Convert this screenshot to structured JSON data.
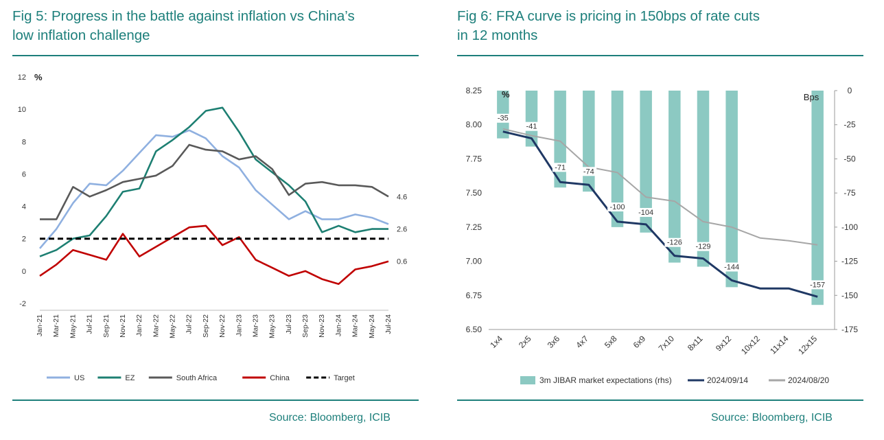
{
  "left": {
    "title_line1": "Fig 5: Progress in the battle against inflation vs China’s",
    "title_line2": "low inflation challenge",
    "source": "Source: Bloomberg, ICIB"
  },
  "right": {
    "title_line1": "Fig 6: FRA curve is pricing in 150bps of rate cuts",
    "title_line2": "in 12 months",
    "source": "Source: Bloomberg, ICIB"
  },
  "chart_data": [
    {
      "type": "line",
      "ylabel_unit": "%",
      "ylim": [
        -2,
        12
      ],
      "yticks": [
        "12",
        "10",
        "8",
        "6",
        "4",
        "2",
        "0",
        "-2"
      ],
      "x": [
        "Jan-21",
        "Mar-21",
        "May-21",
        "Jul-21",
        "Sep-21",
        "Nov-21",
        "Jan-22",
        "Mar-22",
        "May-22",
        "Jul-22",
        "Sep-22",
        "Nov-22",
        "Jan-23",
        "Mar-23",
        "May-23",
        "Jul-23",
        "Sep-23",
        "Nov-23",
        "Jan-24",
        "Mar-24",
        "May-24",
        "Jul-24"
      ],
      "series": [
        {
          "name": "US",
          "color": "#8fb0e0",
          "values": [
            1.4,
            2.6,
            4.2,
            5.4,
            5.3,
            6.2,
            7.3,
            8.4,
            8.3,
            8.7,
            8.2,
            7.1,
            6.4,
            5.0,
            4.1,
            3.2,
            3.7,
            3.2,
            3.2,
            3.5,
            3.3,
            2.9
          ]
        },
        {
          "name": "EZ",
          "color": "#1d7f72",
          "values": [
            0.9,
            1.3,
            2.0,
            2.2,
            3.4,
            4.9,
            5.1,
            7.4,
            8.1,
            8.9,
            9.9,
            10.1,
            8.6,
            6.9,
            6.1,
            5.3,
            4.3,
            2.4,
            2.8,
            2.4,
            2.6,
            2.6
          ]
        },
        {
          "name": "South Africa",
          "color": "#595959",
          "values": [
            3.2,
            3.2,
            5.2,
            4.6,
            5.0,
            5.5,
            5.7,
            5.9,
            6.5,
            7.8,
            7.5,
            7.4,
            6.9,
            7.1,
            6.3,
            4.7,
            5.4,
            5.5,
            5.3,
            5.3,
            5.2,
            4.6
          ]
        },
        {
          "name": "China",
          "color": "#c00000",
          "values": [
            -0.3,
            0.4,
            1.3,
            1.0,
            0.7,
            2.3,
            0.9,
            1.5,
            2.1,
            2.7,
            2.8,
            1.6,
            2.1,
            0.7,
            0.2,
            -0.3,
            0.0,
            -0.5,
            -0.8,
            0.1,
            0.3,
            0.6
          ]
        },
        {
          "name": "Target",
          "color": "#000000",
          "dashed": true,
          "values": [
            2,
            2,
            2,
            2,
            2,
            2,
            2,
            2,
            2,
            2,
            2,
            2,
            2,
            2,
            2,
            2,
            2,
            2,
            2,
            2,
            2,
            2
          ]
        }
      ],
      "end_labels": [
        {
          "text": "4.6",
          "value": 4.6
        },
        {
          "text": "2.6",
          "value": 2.6
        },
        {
          "text": "0.6",
          "value": 0.6
        }
      ]
    },
    {
      "type": "bar+line",
      "unit_left": "%",
      "unit_right": "Bps",
      "categories": [
        "1x4",
        "2x5",
        "3x6",
        "4x7",
        "5x8",
        "6x9",
        "7x10",
        "8x11",
        "9x12",
        "10x12",
        "11x14",
        "12x15"
      ],
      "ylim_left": [
        6.5,
        8.25
      ],
      "ylim_right": [
        -175,
        0
      ],
      "yticks_left": [
        "8.25",
        "8.00",
        "7.75",
        "7.50",
        "7.25",
        "7.00",
        "6.75",
        "6.50"
      ],
      "yticks_right": [
        "0",
        "-25",
        "-50",
        "-75",
        "-100",
        "-125",
        "-150",
        "-175"
      ],
      "bars": {
        "name": "3m JIBAR market expectations (rhs)",
        "color": "#8cc9c2",
        "values": [
          -35,
          -41,
          -71,
          -74,
          -100,
          -104,
          -126,
          -129,
          -144,
          null,
          null,
          -157
        ],
        "labels": [
          "-35",
          "-41",
          "-71",
          "-74",
          "-100",
          "-104",
          "-126",
          "-129",
          "-144",
          "",
          "",
          "-157"
        ]
      },
      "series": [
        {
          "name": "2024/09/14",
          "color": "#1f3864",
          "values": [
            7.95,
            7.9,
            7.58,
            7.56,
            7.29,
            7.27,
            7.04,
            7.02,
            6.86,
            6.8,
            6.8,
            6.74
          ]
        },
        {
          "name": "2024/08/20",
          "color": "#a6a6a6",
          "values": [
            7.97,
            7.92,
            7.88,
            7.69,
            7.65,
            7.47,
            7.44,
            7.29,
            7.25,
            7.17,
            7.15,
            7.12
          ]
        }
      ]
    }
  ]
}
